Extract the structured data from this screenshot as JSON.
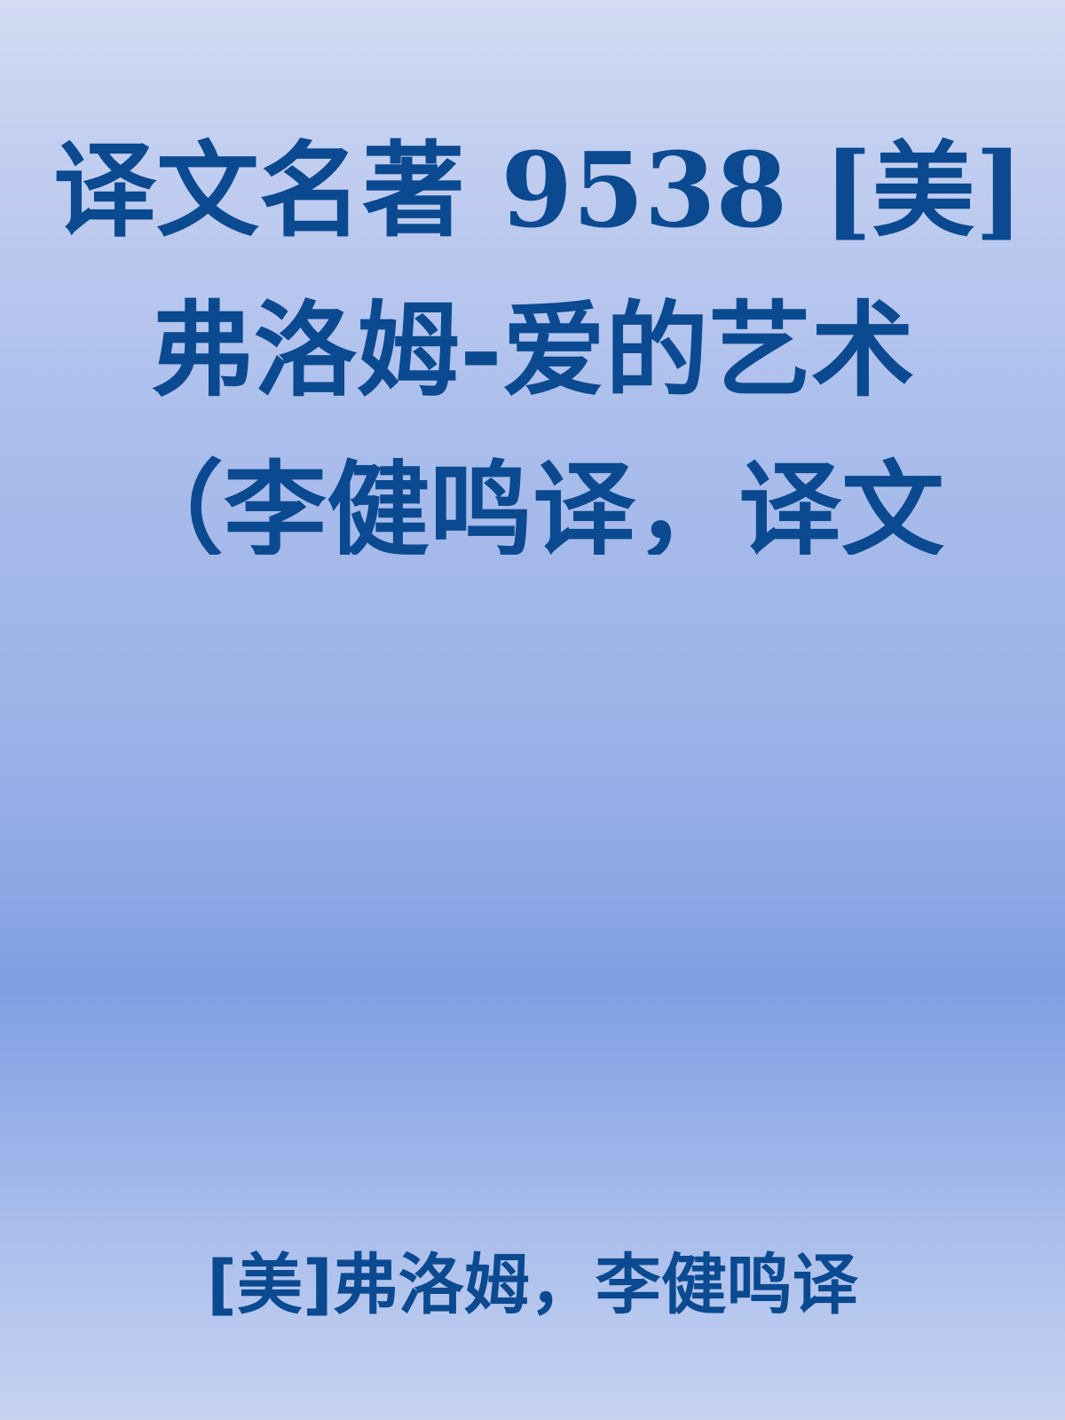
{
  "cover": {
    "title_lines": [
      "译文名著 9538 [美]",
      "弗洛姆-爱的艺术",
      "（李健鸣译，译文"
    ],
    "author": "[美]弗洛姆，李健鸣译",
    "colors": {
      "text": "#0b4a90",
      "background_top": "#d3dcf3",
      "background_mid": "#7f9de2",
      "background_bottom": "#c6d3f1"
    }
  }
}
